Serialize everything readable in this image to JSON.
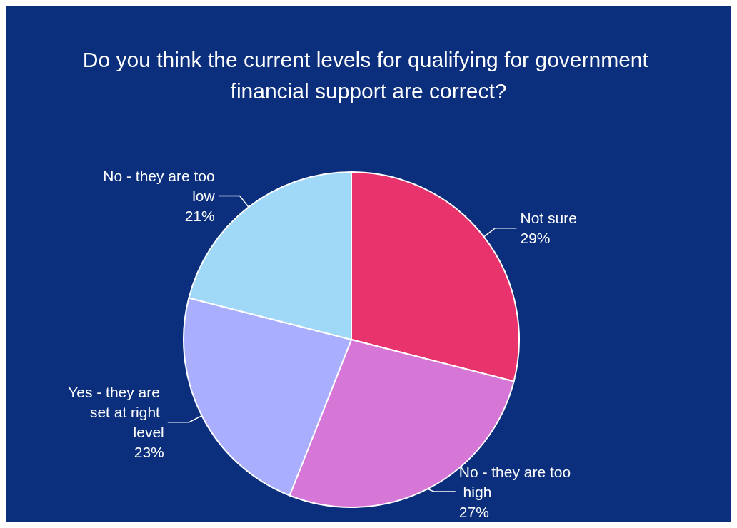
{
  "chart_data": {
    "type": "pie",
    "title": "Do you think the current levels for qualifying for government financial support are correct?",
    "categories": [
      "Not sure",
      "No - they are too high",
      "Yes - they are set at right level",
      "No - they are too low"
    ],
    "values": [
      29,
      27,
      23,
      21
    ],
    "colors": [
      "#e8336d",
      "#d676d6",
      "#a9aefe",
      "#a0d8f8"
    ],
    "value_labels": [
      "29%",
      "27%",
      "23%",
      "21%"
    ],
    "legend": false
  }
}
